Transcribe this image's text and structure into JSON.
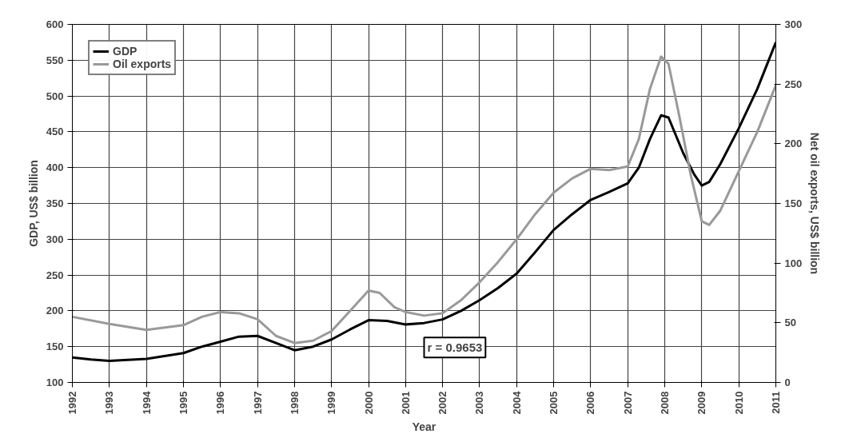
{
  "chart_data": {
    "type": "line",
    "xlabel": "Year",
    "ylabel": "GDP, US$ billion",
    "y2label": "Net oil exports, US$ billion",
    "xlim": [
      1992,
      2011
    ],
    "xticks": [
      1992,
      1993,
      1994,
      1995,
      1996,
      1997,
      1998,
      1999,
      2000,
      2001,
      2002,
      2003,
      2004,
      2005,
      2006,
      2007,
      2008,
      2009,
      2010,
      2011
    ],
    "ylim": [
      100,
      600
    ],
    "yticks": [
      100,
      150,
      200,
      250,
      300,
      350,
      400,
      450,
      500,
      550,
      600
    ],
    "y2lim": [
      0,
      300
    ],
    "y2ticks": [
      0,
      50,
      100,
      150,
      200,
      250,
      300
    ],
    "grid": true,
    "legend": "top left",
    "annotations": [
      "r = 0.9653"
    ],
    "series": [
      {
        "name": "GDP",
        "color": "#000000",
        "x": [
          1992,
          1992.5,
          1993,
          1994,
          1995,
          1995.5,
          1996,
          1996.5,
          1997,
          1997.5,
          1998,
          1998.5,
          1999,
          1999.5,
          2000,
          2000.5,
          2001,
          2001.5,
          2002,
          2002.5,
          2003,
          2003.5,
          2004,
          2004.5,
          2005,
          2005.5,
          2006,
          2006.5,
          2007,
          2007.3,
          2007.6,
          2007.9,
          2008.1,
          2008.5,
          2008.8,
          2009,
          2009.2,
          2009.5,
          2010,
          2010.5,
          2011
        ],
        "values": [
          135,
          132,
          130,
          133,
          141,
          150,
          157,
          164,
          165,
          155,
          145,
          150,
          160,
          174,
          187,
          186,
          181,
          183,
          188,
          200,
          215,
          232,
          252,
          282,
          313,
          335,
          355,
          366,
          378,
          400,
          440,
          473,
          470,
          420,
          390,
          375,
          380,
          405,
          455,
          510,
          575
        ]
      },
      {
        "name": "Oil exports",
        "color": "#999999",
        "axis": "y2",
        "x": [
          1992,
          1993,
          1994,
          1995,
          1995.5,
          1996,
          1996.5,
          1997,
          1997.5,
          1998,
          1998.5,
          1999,
          1999.5,
          2000,
          2000.3,
          2000.7,
          2001,
          2001.5,
          2002,
          2002.5,
          2003,
          2003.5,
          2004,
          2004.5,
          2005,
          2005.5,
          2006,
          2006.5,
          2007,
          2007.3,
          2007.6,
          2007.9,
          2008.1,
          2008.4,
          2008.7,
          2009,
          2009.2,
          2009.5,
          2010,
          2010.5,
          2011
        ],
        "values": [
          55,
          49,
          44,
          48,
          55,
          59,
          58,
          53,
          39,
          33,
          35,
          43,
          60,
          77,
          75,
          63,
          59,
          56,
          58,
          69,
          84,
          101,
          120,
          141,
          159,
          171,
          179,
          178,
          181,
          204,
          246,
          273,
          267,
          222,
          174,
          135,
          132,
          144,
          177,
          210,
          249
        ]
      }
    ]
  }
}
